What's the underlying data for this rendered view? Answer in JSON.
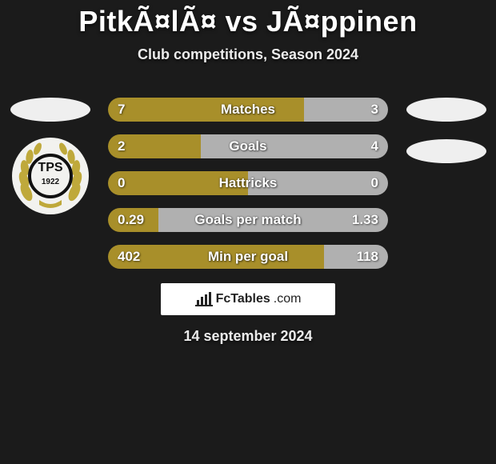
{
  "title": "PitkÃ¤lÃ¤ vs JÃ¤ppinen",
  "subtitle": "Club competitions, Season 2024",
  "date": "14 september 2024",
  "brand": {
    "name": "FcTables",
    "suffix": ".com"
  },
  "colors": {
    "left": "#a88f2a",
    "right": "#b0b0b0",
    "bg": "#1b1b1b"
  },
  "rows": [
    {
      "label": "Matches",
      "left_text": "7",
      "right_text": "3",
      "left_pct": 70,
      "right_pct": 30
    },
    {
      "label": "Goals",
      "left_text": "2",
      "right_text": "4",
      "left_pct": 33,
      "right_pct": 67
    },
    {
      "label": "Hattricks",
      "left_text": "0",
      "right_text": "0",
      "left_pct": 50,
      "right_pct": 50
    },
    {
      "label": "Goals per match",
      "left_text": "0.29",
      "right_text": "1.33",
      "left_pct": 18,
      "right_pct": 82
    },
    {
      "label": "Min per goal",
      "left_text": "402",
      "right_text": "118",
      "left_pct": 77,
      "right_pct": 23
    }
  ]
}
